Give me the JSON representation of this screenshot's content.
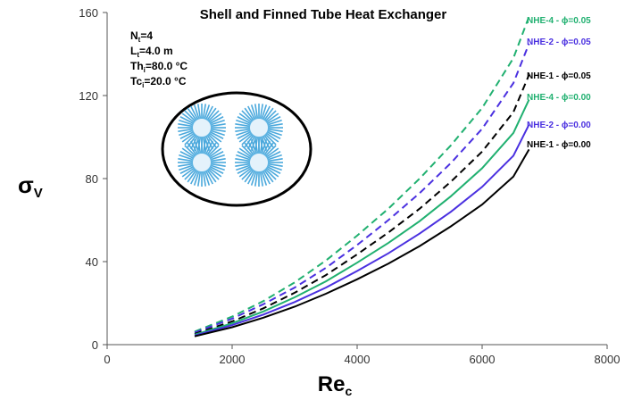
{
  "chart_data": {
    "type": "line",
    "title": "Shell and Finned Tube Heat Exchanger",
    "xlabel": "Re",
    "xlabel_sub": "c",
    "ylabel": "σ",
    "ylabel_sub": "V",
    "xlim": [
      0,
      8000
    ],
    "ylim": [
      0,
      160
    ],
    "xticks": [
      "0",
      "2000",
      "4000",
      "6000",
      "8000"
    ],
    "yticks": [
      "0",
      "40",
      "80",
      "120",
      "160"
    ],
    "grid": false,
    "params": [
      {
        "base": "N",
        "sub": "t",
        "rest": "=4"
      },
      {
        "base": "L",
        "sub": "t",
        "rest": "=4.0 m"
      },
      {
        "base": "Th",
        "sub": "i",
        "rest": "=80.0 °C"
      },
      {
        "base": "Tc",
        "sub": "i",
        "rest": "=20.0 °C"
      }
    ],
    "inset_icon": "finned-tube-cross-section",
    "x": [
      1400,
      2000,
      2500,
      3000,
      3500,
      4000,
      4500,
      5000,
      5500,
      6000,
      6500,
      6750
    ],
    "series": [
      {
        "name": "NHE-4 - ϕ=0.05",
        "color": "#20b070",
        "dashed": true,
        "values": [
          6.3,
          13.5,
          21.0,
          30.0,
          40.5,
          52.5,
          65.5,
          80.0,
          96.0,
          114.0,
          138.0,
          158.0
        ]
      },
      {
        "name": "NHE-2 - ϕ=0.05",
        "color": "#4a30e0",
        "dashed": true,
        "values": [
          5.8,
          12.5,
          19.5,
          27.5,
          37.0,
          48.0,
          60.0,
          73.0,
          87.5,
          104.0,
          126.0,
          145.0
        ]
      },
      {
        "name": "NHE-1 - ϕ=0.05",
        "color": "#000000",
        "dashed": true,
        "values": [
          5.2,
          11.2,
          17.5,
          25.0,
          33.5,
          43.5,
          54.0,
          65.5,
          78.5,
          93.0,
          112.0,
          130.0
        ]
      },
      {
        "name": "NHE-4 - ϕ=0.00",
        "color": "#20b070",
        "dashed": false,
        "values": [
          4.8,
          10.3,
          16.0,
          22.8,
          30.5,
          39.5,
          49.0,
          59.5,
          71.5,
          85.0,
          102.0,
          118.0
        ]
      },
      {
        "name": "NHE-2 - ϕ=0.00",
        "color": "#4a30e0",
        "dashed": false,
        "values": [
          4.4,
          9.4,
          14.5,
          20.5,
          27.5,
          35.5,
          44.0,
          53.5,
          64.0,
          76.0,
          91.0,
          106.0
        ]
      },
      {
        "name": "NHE-1 - ϕ=0.00",
        "color": "#000000",
        "dashed": false,
        "values": [
          4.0,
          8.4,
          13.0,
          18.3,
          24.5,
          31.5,
          39.0,
          47.5,
          57.0,
          67.5,
          81.0,
          94.0
        ]
      }
    ]
  }
}
